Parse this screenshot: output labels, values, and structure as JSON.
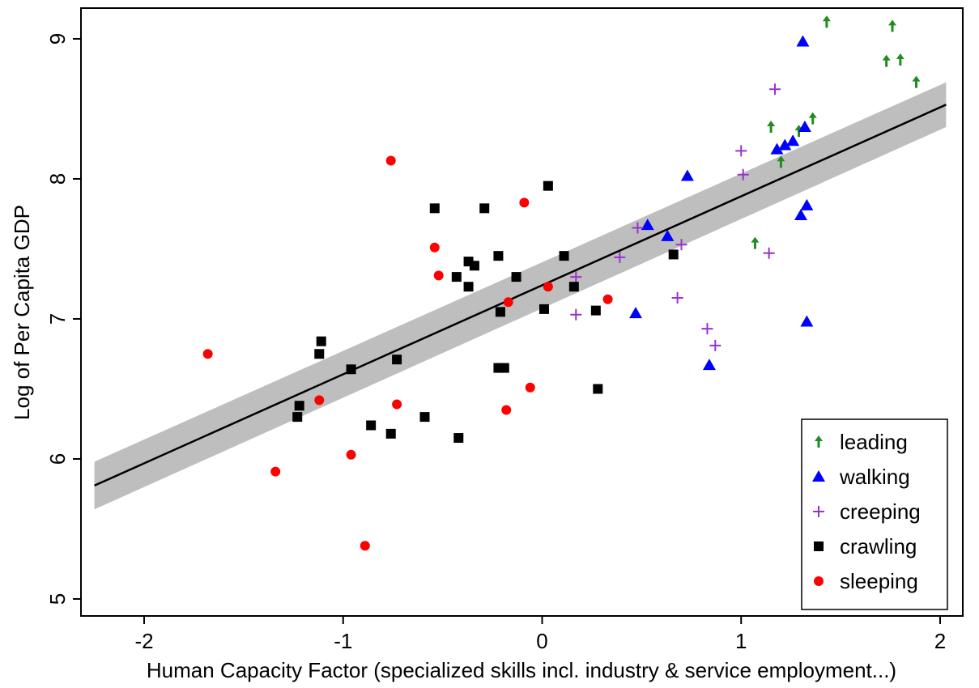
{
  "chart_data": {
    "type": "scatter",
    "title": "",
    "xlabel": "Human Capacity Factor (specialized skills incl. industry & service employment...)",
    "ylabel": "Log of Per Capita GDP",
    "xlim": [
      -2.3,
      2.05
    ],
    "ylim": [
      4.85,
      9.25
    ],
    "x_ticks": [
      -2,
      -1,
      0,
      1,
      2
    ],
    "x_tick_labels": [
      "-2",
      "-1",
      "0",
      "1",
      "2"
    ],
    "y_ticks": [
      5,
      6,
      7,
      8,
      9
    ],
    "y_tick_labels": [
      "5",
      "6",
      "7",
      "8",
      "9"
    ],
    "grid": false,
    "legend_position": "bottom-right",
    "fit_line": {
      "x": [
        -2.25,
        2.03
      ],
      "y": [
        5.81,
        8.53
      ],
      "ci_lower": [
        5.64,
        8.37
      ],
      "ci_upper": [
        5.98,
        8.69
      ],
      "color": "#000000",
      "band_color": "#bebebe"
    },
    "series": [
      {
        "name": "leading",
        "marker": "arrow",
        "color": "#228b22",
        "points": [
          {
            "x": 1.43,
            "y": 9.12
          },
          {
            "x": 1.76,
            "y": 9.09
          },
          {
            "x": 1.73,
            "y": 8.84
          },
          {
            "x": 1.8,
            "y": 8.85
          },
          {
            "x": 1.88,
            "y": 8.69
          },
          {
            "x": 1.15,
            "y": 8.37
          },
          {
            "x": 1.29,
            "y": 8.34
          },
          {
            "x": 1.36,
            "y": 8.43
          },
          {
            "x": 1.2,
            "y": 8.12
          },
          {
            "x": 1.07,
            "y": 7.54
          }
        ]
      },
      {
        "name": "walking",
        "marker": "triangle",
        "color": "#0000ff",
        "points": [
          {
            "x": 1.31,
            "y": 8.98
          },
          {
            "x": 1.32,
            "y": 8.37
          },
          {
            "x": 1.26,
            "y": 8.27
          },
          {
            "x": 1.22,
            "y": 8.24
          },
          {
            "x": 1.18,
            "y": 8.21
          },
          {
            "x": 0.73,
            "y": 8.02
          },
          {
            "x": 1.33,
            "y": 7.81
          },
          {
            "x": 1.3,
            "y": 7.74
          },
          {
            "x": 0.53,
            "y": 7.67
          },
          {
            "x": 0.63,
            "y": 7.59
          },
          {
            "x": 0.47,
            "y": 7.04
          },
          {
            "x": 1.33,
            "y": 6.98
          },
          {
            "x": 0.84,
            "y": 6.67
          }
        ]
      },
      {
        "name": "creeping",
        "marker": "plus",
        "color": "#9932cc",
        "points": [
          {
            "x": 1.17,
            "y": 8.64
          },
          {
            "x": 1.0,
            "y": 8.2
          },
          {
            "x": 1.01,
            "y": 8.03
          },
          {
            "x": 0.48,
            "y": 7.65
          },
          {
            "x": 0.7,
            "y": 7.53
          },
          {
            "x": 1.14,
            "y": 7.47
          },
          {
            "x": 0.39,
            "y": 7.44
          },
          {
            "x": 0.17,
            "y": 7.3
          },
          {
            "x": 0.68,
            "y": 7.15
          },
          {
            "x": 0.17,
            "y": 7.03
          },
          {
            "x": 0.83,
            "y": 6.93
          },
          {
            "x": 0.87,
            "y": 6.81
          }
        ]
      },
      {
        "name": "crawling",
        "marker": "square",
        "color": "#000000",
        "points": [
          {
            "x": 0.03,
            "y": 7.95
          },
          {
            "x": -0.54,
            "y": 7.79
          },
          {
            "x": -0.29,
            "y": 7.79
          },
          {
            "x": 0.11,
            "y": 7.45
          },
          {
            "x": -0.22,
            "y": 7.45
          },
          {
            "x": 0.66,
            "y": 7.46
          },
          {
            "x": -0.37,
            "y": 7.41
          },
          {
            "x": -0.34,
            "y": 7.38
          },
          {
            "x": -0.43,
            "y": 7.3
          },
          {
            "x": -0.13,
            "y": 7.3
          },
          {
            "x": -0.37,
            "y": 7.23
          },
          {
            "x": 0.16,
            "y": 7.23
          },
          {
            "x": 0.01,
            "y": 7.07
          },
          {
            "x": -0.21,
            "y": 7.05
          },
          {
            "x": 0.27,
            "y": 7.06
          },
          {
            "x": -1.11,
            "y": 6.84
          },
          {
            "x": -1.12,
            "y": 6.75
          },
          {
            "x": -0.73,
            "y": 6.71
          },
          {
            "x": -0.96,
            "y": 6.64
          },
          {
            "x": -0.22,
            "y": 6.65
          },
          {
            "x": -0.19,
            "y": 6.65
          },
          {
            "x": 0.28,
            "y": 6.5
          },
          {
            "x": -1.22,
            "y": 6.38
          },
          {
            "x": -1.23,
            "y": 6.3
          },
          {
            "x": -0.59,
            "y": 6.3
          },
          {
            "x": -0.86,
            "y": 6.24
          },
          {
            "x": -0.76,
            "y": 6.18
          },
          {
            "x": -0.42,
            "y": 6.15
          }
        ]
      },
      {
        "name": "sleeping",
        "marker": "circle",
        "color": "#ff0000",
        "points": [
          {
            "x": -0.76,
            "y": 8.13
          },
          {
            "x": -0.09,
            "y": 7.83
          },
          {
            "x": -0.54,
            "y": 7.51
          },
          {
            "x": -0.52,
            "y": 7.31
          },
          {
            "x": 0.03,
            "y": 7.23
          },
          {
            "x": 0.33,
            "y": 7.14
          },
          {
            "x": -0.17,
            "y": 7.12
          },
          {
            "x": -1.68,
            "y": 6.75
          },
          {
            "x": -0.06,
            "y": 6.51
          },
          {
            "x": -1.12,
            "y": 6.42
          },
          {
            "x": -0.73,
            "y": 6.39
          },
          {
            "x": -0.18,
            "y": 6.35
          },
          {
            "x": -0.96,
            "y": 6.03
          },
          {
            "x": -1.34,
            "y": 5.91
          },
          {
            "x": -0.89,
            "y": 5.38
          }
        ]
      }
    ]
  }
}
